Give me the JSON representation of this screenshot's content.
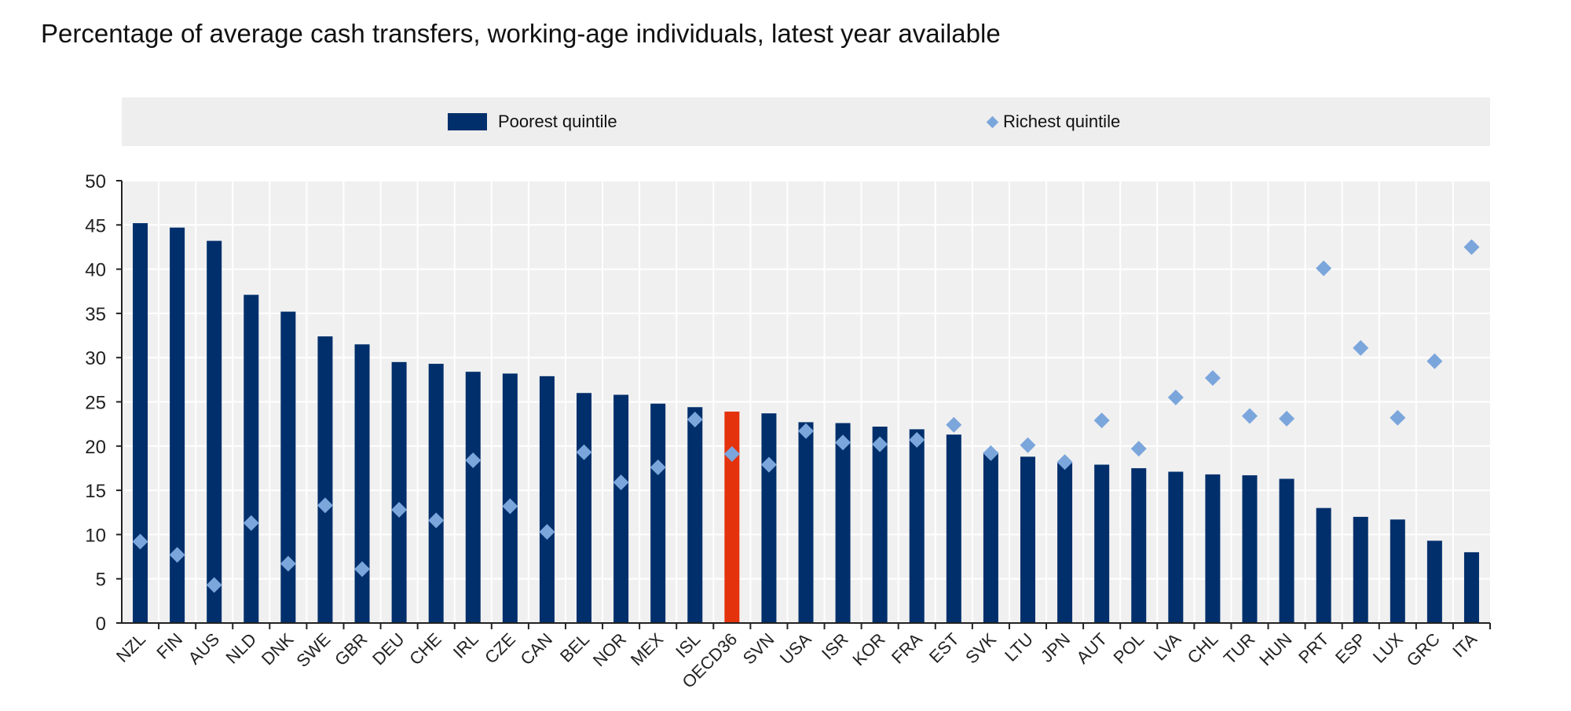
{
  "chart_data": {
    "type": "bar",
    "title": "Percentage of average cash transfers, working-age individuals, latest year available",
    "xlabel": "",
    "ylabel": "",
    "ylim": [
      0,
      50
    ],
    "yticks": [
      0,
      5,
      10,
      15,
      20,
      25,
      30,
      35,
      40,
      45,
      50
    ],
    "grid": true,
    "legend_placement": "top",
    "categories": [
      "NZL",
      "FIN",
      "AUS",
      "NLD",
      "DNK",
      "SWE",
      "GBR",
      "DEU",
      "CHE",
      "IRL",
      "CZE",
      "CAN",
      "BEL",
      "NOR",
      "MEX",
      "ISL",
      "OECD36",
      "SVN",
      "USA",
      "ISR",
      "KOR",
      "FRA",
      "EST",
      "SVK",
      "LTU",
      "JPN",
      "AUT",
      "POL",
      "LVA",
      "CHL",
      "TUR",
      "HUN",
      "PRT",
      "ESP",
      "LUX",
      "GRC",
      "ITA"
    ],
    "highlight_category": "OECD36",
    "series": [
      {
        "name": "Poorest quintile",
        "mark": "bar",
        "color": "#002f6c",
        "highlight_color": "#e4320d",
        "values": [
          45.2,
          44.7,
          43.2,
          37.1,
          35.2,
          32.4,
          31.5,
          29.5,
          29.3,
          28.4,
          28.2,
          27.9,
          26.0,
          25.8,
          24.8,
          24.4,
          23.9,
          23.7,
          22.7,
          22.6,
          22.2,
          21.9,
          21.3,
          19.3,
          18.8,
          18.1,
          17.9,
          17.5,
          17.1,
          16.8,
          16.7,
          16.3,
          13.0,
          12.0,
          11.7,
          9.3,
          8.0
        ]
      },
      {
        "name": "Richest quintile",
        "mark": "diamond",
        "color": "#7ba6dc",
        "values": [
          9.2,
          7.7,
          4.3,
          11.3,
          6.7,
          13.3,
          6.1,
          12.8,
          11.6,
          18.4,
          13.2,
          10.3,
          19.3,
          15.9,
          17.6,
          23.0,
          19.1,
          17.9,
          21.7,
          20.4,
          20.2,
          20.7,
          22.4,
          19.2,
          20.1,
          18.2,
          22.9,
          19.7,
          25.5,
          27.7,
          23.4,
          23.1,
          40.1,
          31.1,
          23.2,
          29.6,
          42.5
        ]
      }
    ]
  }
}
